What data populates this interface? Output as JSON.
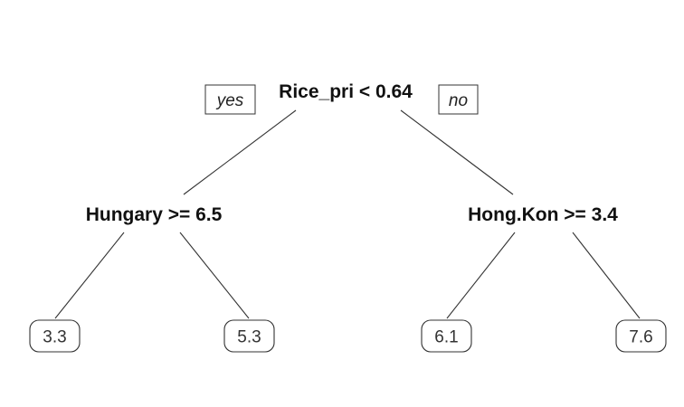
{
  "tree": {
    "root": {
      "split": "Rice_pri < 0.64",
      "yes_label": "yes",
      "no_label": "no"
    },
    "left": {
      "split": "Hungary >= 6.5"
    },
    "right": {
      "split": "Hong.Kon >= 3.4"
    },
    "leaves": [
      "3.3",
      "5.3",
      "6.1",
      "7.6"
    ]
  }
}
